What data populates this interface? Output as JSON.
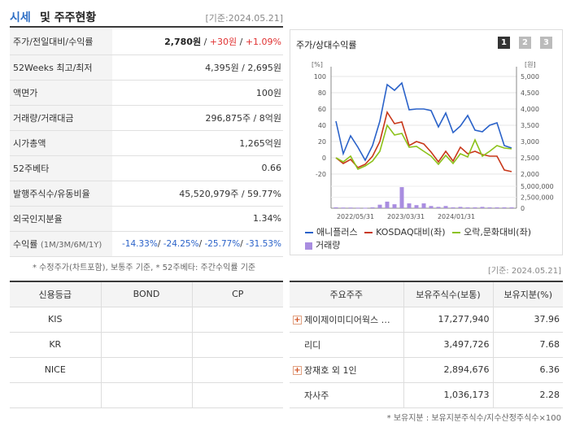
{
  "header": {
    "title_a": "시세",
    "title_b": "및 주주현황",
    "date": "[기준:2024.05.21]"
  },
  "quote": {
    "rows": [
      {
        "label": "주가/전일대비/수익률",
        "price": "2,780원",
        "sep1": " / ",
        "chg": "+30원",
        "sep2": " / ",
        "pct": "+1.09%"
      },
      {
        "label": "52Weeks 최고/최저",
        "value": "4,395원 / 2,695원"
      },
      {
        "label": "액면가",
        "value": "100원"
      },
      {
        "label": "거래량/거래대금",
        "value": "296,875주 / 8억원"
      },
      {
        "label": "시가총액",
        "value": "1,265억원"
      },
      {
        "label": "52주베타",
        "value": "0.66"
      },
      {
        "label": "발행주식수/유동비율",
        "value": "45,520,979주 / 59.77%"
      },
      {
        "label": "외국인지분율",
        "value": "1.34%"
      },
      {
        "label": "수익률",
        "label_small": "(1M/3M/6M/1Y)",
        "r1": "-14.33%",
        "r2": "-24.25%",
        "r3": "-25.77%",
        "r4": "-31.53%"
      }
    ]
  },
  "notes": {
    "quote_note": "* 수정주가(차트포함), 보통주 기준, * 52주베타: 주간수익률 기준",
    "date2": "[기준: 2024.05.21]",
    "holder_note": "* 보유지분 : 보유지분주식수/지수산정주식수×100"
  },
  "chart": {
    "title": "주가/상대수익률",
    "pages": [
      "1",
      "2",
      "3"
    ],
    "left_unit": "[%]",
    "right_unit": "[원]",
    "left_ticks": [
      "100",
      "80",
      "60",
      "40",
      "20",
      "0",
      "-20"
    ],
    "right_ticks": [
      "5,000",
      "4,500",
      "4,000",
      "3,500",
      "3,000",
      "2,500",
      "2,000"
    ],
    "vol_ticks": [
      "5,000,000",
      "2,500,000",
      "0"
    ],
    "x_ticks": [
      "2022/05/31",
      "2023/03/31",
      "2024/01/31"
    ],
    "legend": [
      {
        "label": "애니플러스",
        "color": "#2a62c9"
      },
      {
        "label": "KOSDAQ대비(좌)",
        "color": "#c8381a"
      },
      {
        "label": "오락,문화대비(좌)",
        "color": "#8cc21a"
      },
      {
        "label": "거래량",
        "color": "#a98de0"
      }
    ]
  },
  "chart_data": {
    "type": "line",
    "ylim_left": [
      -20,
      100
    ],
    "ylim_right": [
      2000,
      5000
    ],
    "ylim_volume": [
      0,
      5000000
    ],
    "series": [
      {
        "name": "애니플러스",
        "axis": "left",
        "values": [
          45,
          5,
          27,
          13,
          -3,
          15,
          45,
          90,
          83,
          92,
          59,
          60,
          60,
          58,
          38,
          55,
          31,
          39,
          52,
          34,
          32,
          40,
          43,
          15,
          12
        ]
      },
      {
        "name": "KOSDAQ대비(좌)",
        "axis": "left",
        "values": [
          0,
          -7,
          -2,
          -12,
          -8,
          2,
          20,
          56,
          42,
          44,
          15,
          20,
          17,
          7,
          -5,
          8,
          -4,
          13,
          5,
          8,
          4,
          2,
          2,
          -15,
          -17
        ]
      },
      {
        "name": "오락,문화대비(좌)",
        "axis": "left",
        "values": [
          0,
          -5,
          2,
          -14,
          -10,
          -4,
          8,
          40,
          28,
          30,
          13,
          14,
          8,
          2,
          -8,
          3,
          -7,
          5,
          1,
          22,
          2,
          8,
          15,
          12,
          11
        ]
      },
      {
        "name": "거래량",
        "axis": "volume",
        "values": [
          200000,
          150000,
          150000,
          120000,
          100000,
          200000,
          800000,
          1500000,
          900000,
          4800000,
          1100000,
          700000,
          1100000,
          500000,
          300000,
          500000,
          200000,
          300000,
          200000,
          200000,
          300000,
          200000,
          200000,
          200000,
          200000
        ]
      }
    ]
  },
  "credit": {
    "headers": [
      "신용등급",
      "BOND",
      "CP"
    ],
    "rows": [
      {
        "agency": "KIS",
        "bond": "",
        "cp": ""
      },
      {
        "agency": "KR",
        "bond": "",
        "cp": ""
      },
      {
        "agency": "NICE",
        "bond": "",
        "cp": ""
      },
      {
        "agency": "",
        "bond": "",
        "cp": ""
      }
    ]
  },
  "holders": {
    "headers": [
      "주요주주",
      "보유주식수(보통)",
      "보유지분(%)"
    ],
    "rows": [
      {
        "name": "제이제이미디어웍스 …",
        "shares": "17,277,940",
        "pct": "37.96",
        "expand": true
      },
      {
        "name": "리디",
        "shares": "3,497,726",
        "pct": "7.68",
        "expand": false
      },
      {
        "name": "장재호 외 1인",
        "shares": "2,894,676",
        "pct": "6.36",
        "expand": true
      },
      {
        "name": "자사주",
        "shares": "1,036,173",
        "pct": "2.28",
        "expand": false
      }
    ]
  }
}
